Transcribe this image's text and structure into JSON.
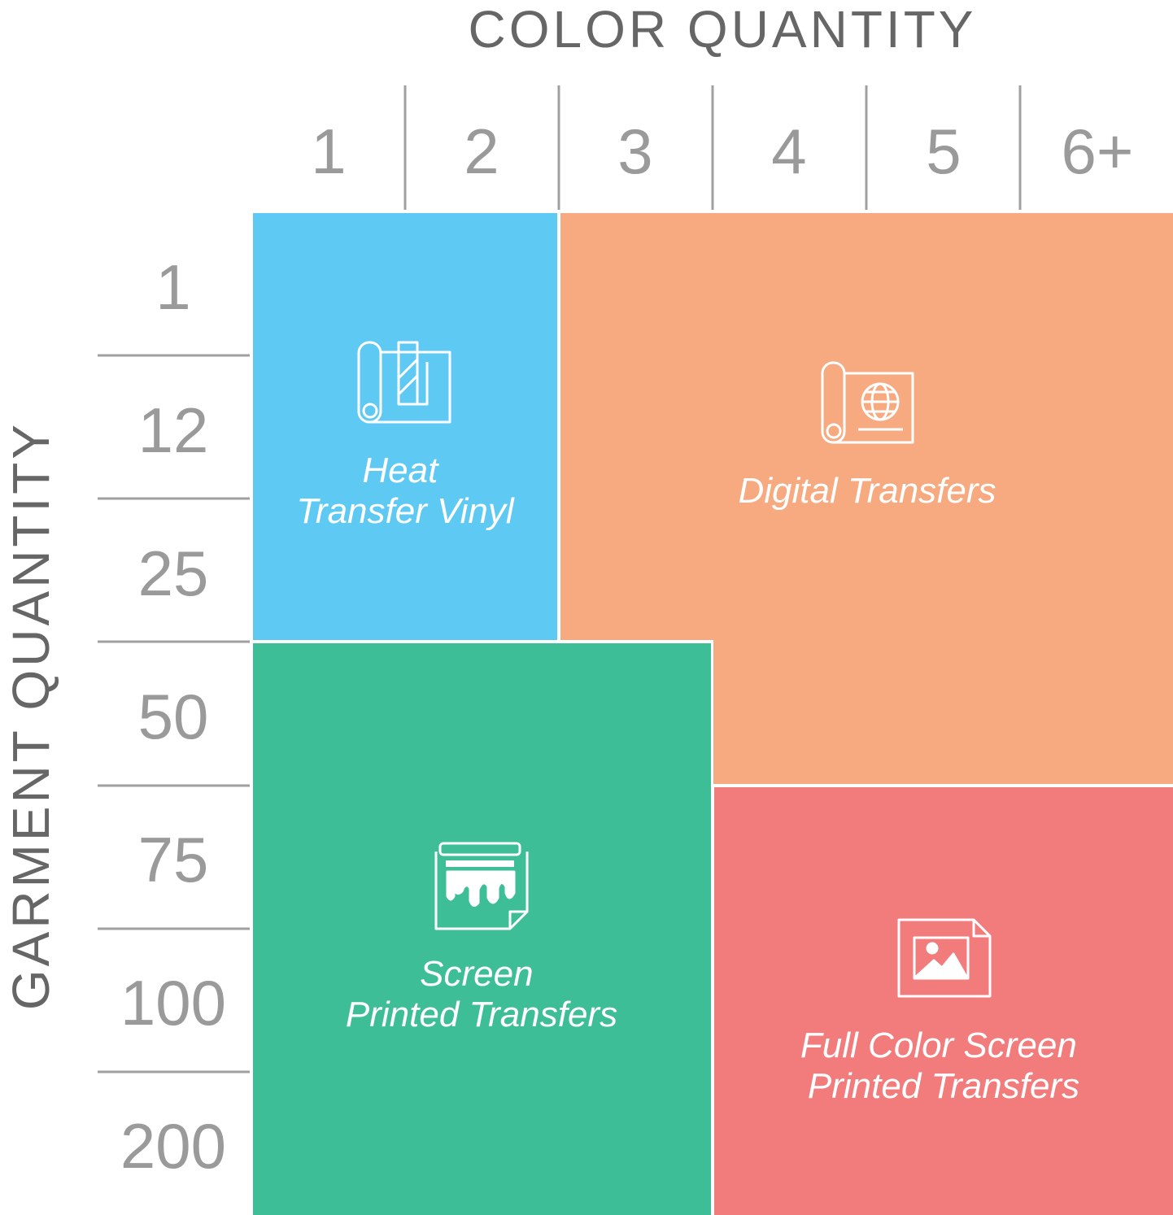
{
  "title": "COLOR QUANTITY",
  "y_axis_label": "GARMENT QUANTITY",
  "columns": [
    "1",
    "2",
    "3",
    "4",
    "5",
    "6+"
  ],
  "rows": [
    "1",
    "12",
    "25",
    "50",
    "75",
    "100",
    "200"
  ],
  "regions": [
    {
      "label_lines": [
        "Heat",
        "Transfer Vinyl"
      ],
      "color": "#5ecaf3"
    },
    {
      "label_lines": [
        "Digital Transfers"
      ],
      "color": "#f7a97f"
    },
    {
      "label_lines": [
        "Screen",
        "Printed Transfers"
      ],
      "color": "#3ebe96"
    },
    {
      "label_lines": [
        "Full Color Screen",
        "Printed Transfers"
      ],
      "color": "#f27b7c"
    }
  ]
}
